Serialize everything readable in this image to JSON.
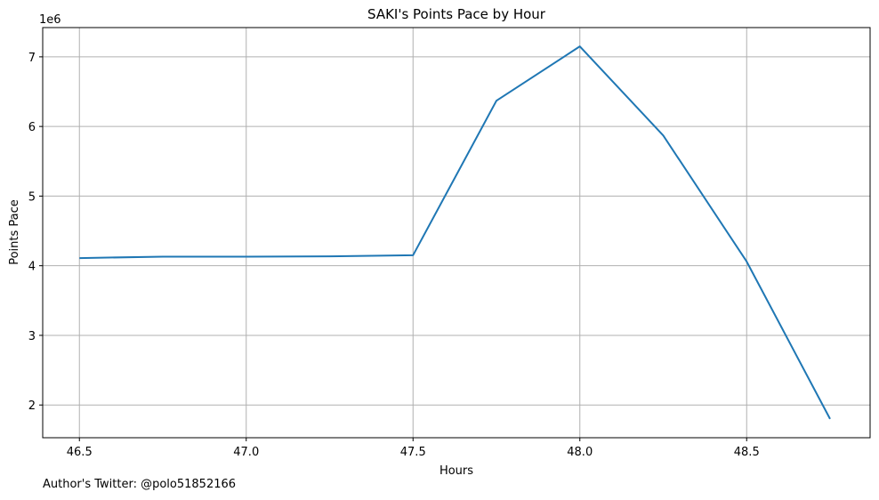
{
  "chart_data": {
    "type": "line",
    "title": "SAKI's Points Pace by Hour",
    "xlabel": "Hours",
    "ylabel": "Points Pace",
    "y_multiplier_label": "1e6",
    "xlim": [
      46.39,
      48.87
    ],
    "ylim": [
      1.53,
      7.42
    ],
    "x_ticks": [
      46.5,
      47.0,
      47.5,
      48.0,
      48.5
    ],
    "x_tick_labels": [
      "46.5",
      "47.0",
      "47.5",
      "48.0",
      "48.5"
    ],
    "y_ticks": [
      2,
      3,
      4,
      5,
      6,
      7
    ],
    "y_tick_labels": [
      "2",
      "3",
      "4",
      "5",
      "6",
      "7"
    ],
    "grid": true,
    "line_color": "#1f77b4",
    "series": [
      {
        "x": [
          46.5,
          46.75,
          47.0,
          47.25,
          47.5,
          47.75,
          48.0,
          48.25,
          48.5,
          48.75
        ],
        "y": [
          4.11,
          4.13,
          4.13,
          4.135,
          4.15,
          6.37,
          7.15,
          5.87,
          4.06,
          1.8
        ]
      }
    ]
  },
  "footer": {
    "author_note": "Author's Twitter: @polo51852166"
  }
}
